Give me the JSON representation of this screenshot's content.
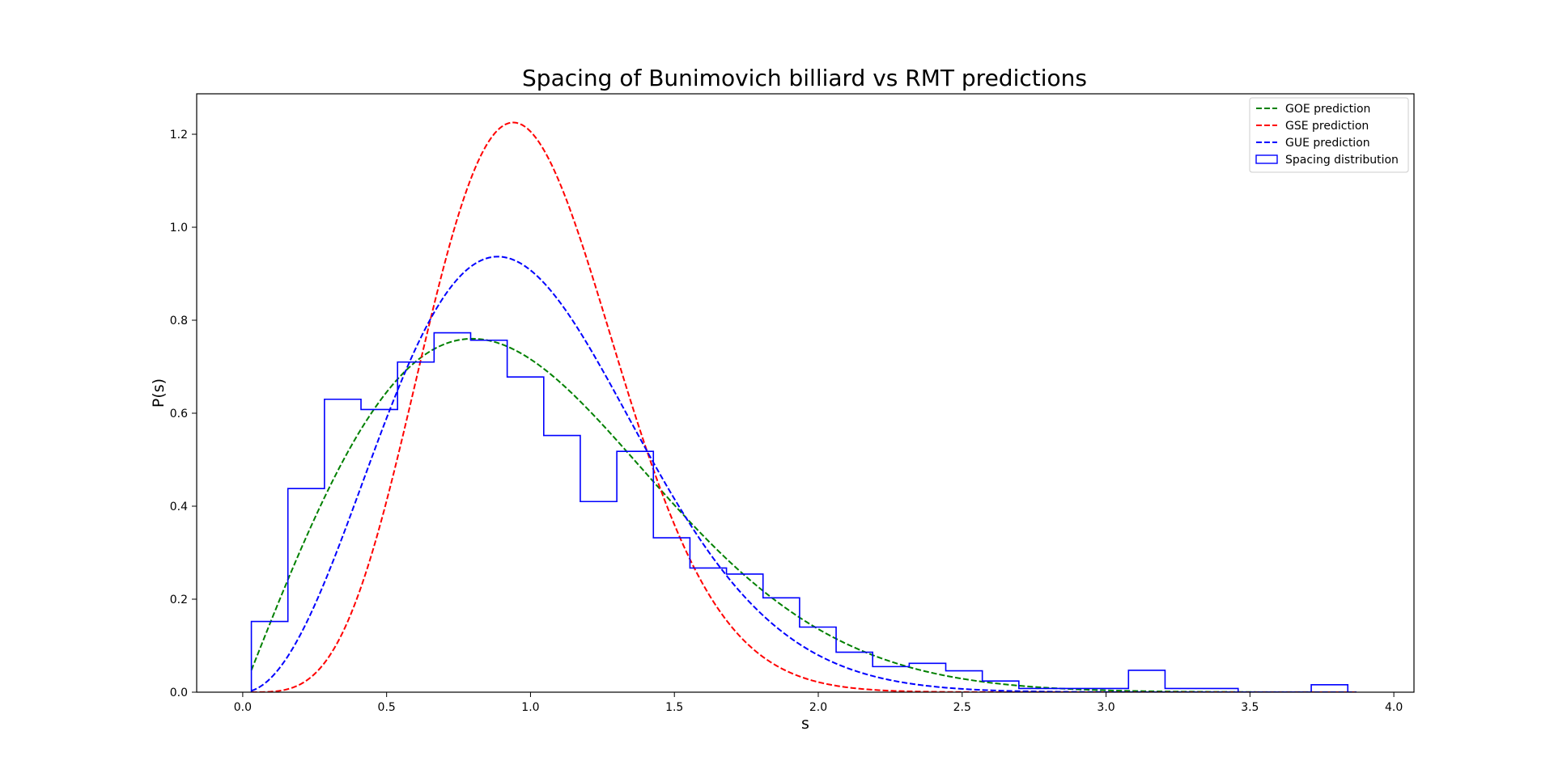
{
  "chart_data": {
    "type": "line",
    "title": "Spacing of Bunimovich billiard vs RMT predictions",
    "xlabel": "s",
    "ylabel": "P(s)",
    "xlim": [
      -0.16,
      4.07
    ],
    "ylim": [
      0.0,
      1.287
    ],
    "xticks": [
      "0.0",
      "0.5",
      "1.0",
      "1.5",
      "2.0",
      "2.5",
      "3.0",
      "3.5",
      "4.0"
    ],
    "yticks": [
      "0.0",
      "0.2",
      "0.4",
      "0.6",
      "0.8",
      "1.0",
      "1.2"
    ],
    "grid": false,
    "legend_position": "top-right",
    "series": [
      {
        "name": "GOE prediction",
        "kind": "curve",
        "style": "dashed",
        "color": "#008000",
        "formula": "GOE",
        "s_range": [
          0.03,
          3.87
        ]
      },
      {
        "name": "GSE prediction",
        "kind": "curve",
        "style": "dashed",
        "color": "#ff0000",
        "formula": "GSE",
        "s_range": [
          0.03,
          3.87
        ]
      },
      {
        "name": "GUE prediction",
        "kind": "curve",
        "style": "dashed",
        "color": "#0000ff",
        "formula": "GUE",
        "s_range": [
          0.03,
          3.87
        ]
      },
      {
        "name": "Spacing distribution",
        "kind": "histogram",
        "style": "step",
        "color": "#0000ff",
        "bin_edges": [
          0.03,
          0.157,
          0.284,
          0.411,
          0.538,
          0.665,
          0.792,
          0.919,
          1.046,
          1.173,
          1.3,
          1.427,
          1.554,
          1.681,
          1.808,
          1.935,
          2.062,
          2.189,
          2.316,
          2.443,
          2.57,
          2.697,
          2.824,
          2.951,
          3.078,
          3.205,
          3.332,
          3.459,
          3.586,
          3.713,
          3.84
        ],
        "values": [
          0.152,
          0.438,
          0.63,
          0.608,
          0.71,
          0.773,
          0.757,
          0.678,
          0.552,
          0.41,
          0.518,
          0.332,
          0.267,
          0.254,
          0.203,
          0.14,
          0.086,
          0.055,
          0.062,
          0.046,
          0.024,
          0.008,
          0.008,
          0.008,
          0.047,
          0.008,
          0.008,
          0.0,
          0.0,
          0.016
        ]
      }
    ]
  }
}
